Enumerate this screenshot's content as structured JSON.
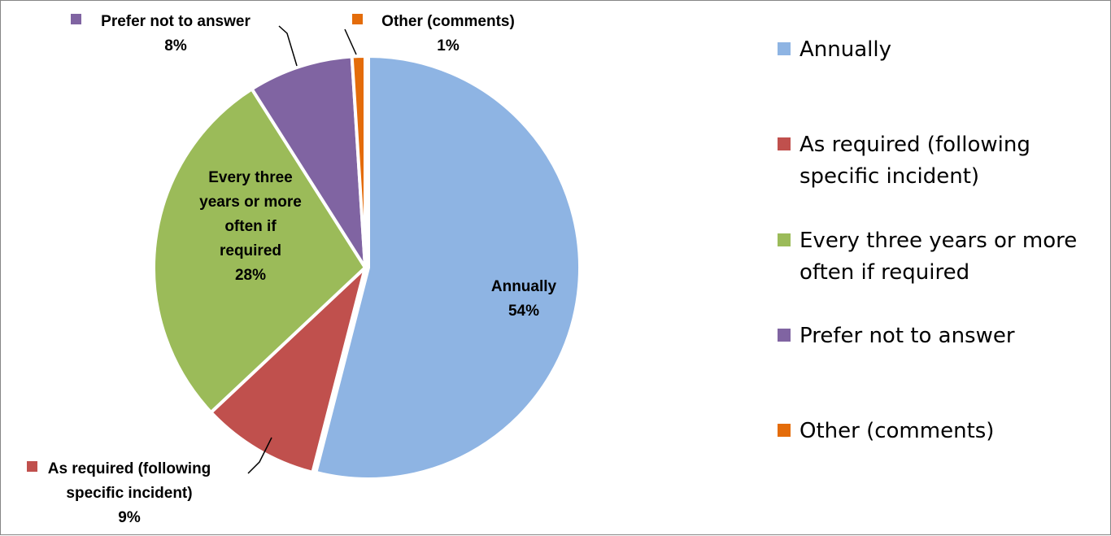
{
  "chart_data": {
    "type": "pie",
    "title": "",
    "slices": [
      {
        "key": "annually",
        "label": "Annually",
        "label_lines": [
          "Annually"
        ],
        "value": 54,
        "value_text": "54%",
        "color": "#8EB4E3",
        "legend_lines": [
          "Annually"
        ]
      },
      {
        "key": "as-required",
        "label": "As required (following specific incident)",
        "label_lines": [
          "As required (following",
          "specific incident)"
        ],
        "value": 9,
        "value_text": "9%",
        "color": "#C0504D",
        "legend_lines": [
          "As required (following",
          "specific incident)"
        ]
      },
      {
        "key": "every-three-years",
        "label": "Every three years or more often if required",
        "label_lines": [
          "Every three",
          "years or more",
          "often if",
          "required"
        ],
        "value": 28,
        "value_text": "28%",
        "color": "#9BBB59",
        "legend_lines": [
          "Every three years or more",
          "often if required"
        ]
      },
      {
        "key": "prefer-not",
        "label": "Prefer not to answer",
        "label_lines": [
          "Prefer not to answer"
        ],
        "value": 8,
        "value_text": "8%",
        "color": "#8064A2",
        "legend_lines": [
          "Prefer not to answer"
        ]
      },
      {
        "key": "other",
        "label": "Other (comments)",
        "label_lines": [
          "Other (comments)"
        ],
        "value": 1,
        "value_text": "1%",
        "color": "#E46C0A",
        "legend_lines": [
          "Other (comments)"
        ]
      }
    ],
    "legend_position": "right"
  }
}
